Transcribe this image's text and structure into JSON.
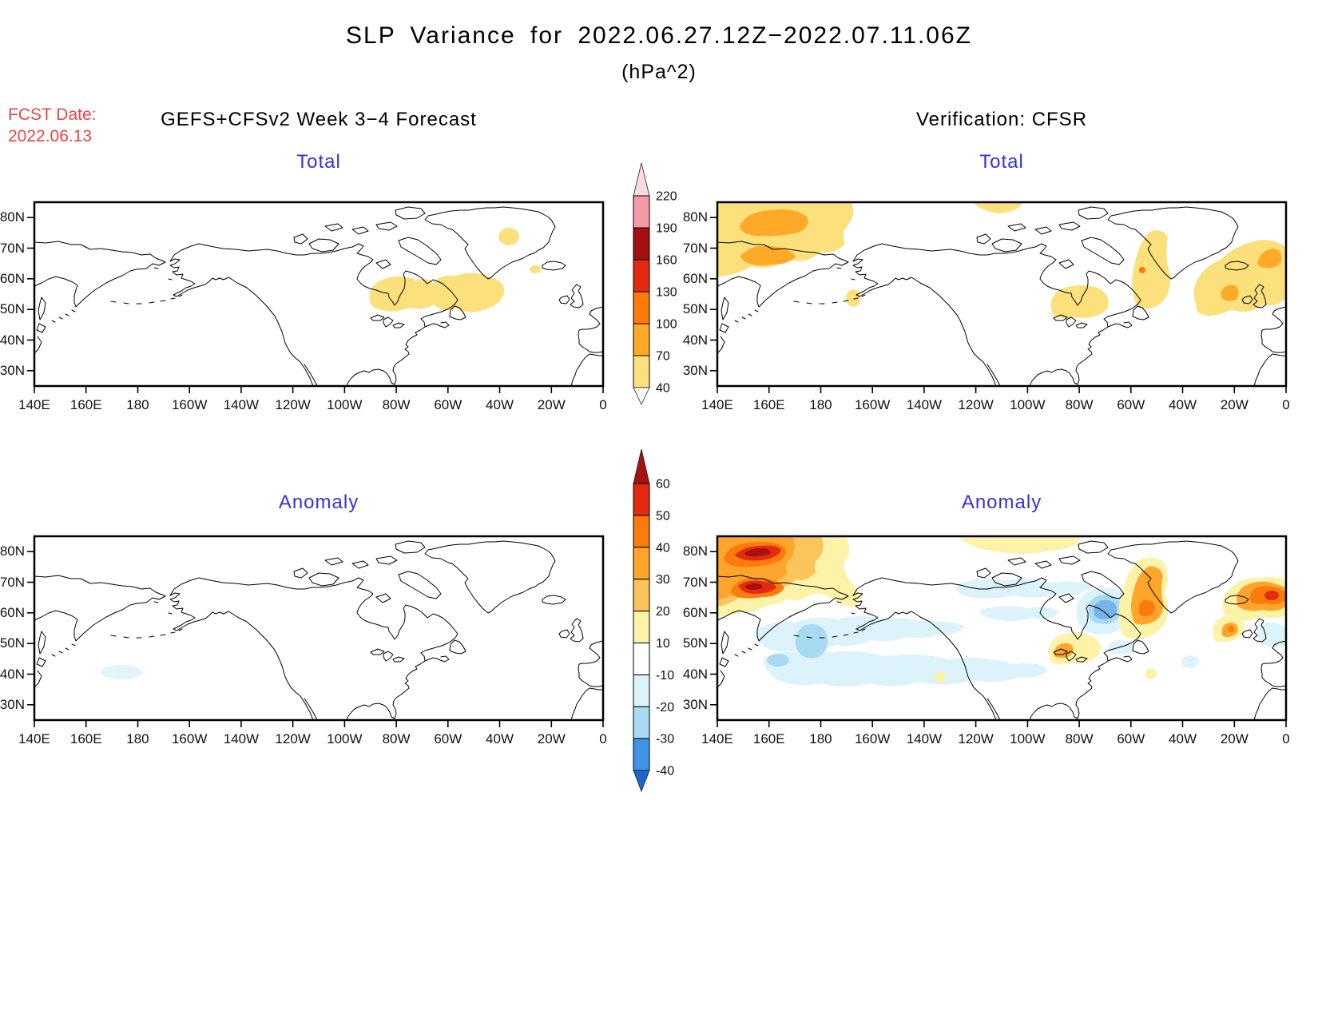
{
  "title": {
    "line1": "SLP Variance for 2022.06.27.12Z−2022.07.11.06Z",
    "line2": "(hPa^2)"
  },
  "forecast_info": {
    "label": "FCST Date:",
    "date": "2022.06.13"
  },
  "column_headers": {
    "left": "GEFS+CFSv2 Week 3−4 Forecast",
    "right": "Verification: CFSR"
  },
  "panel_titles": {
    "top_left": "Total",
    "top_right": "Total",
    "bottom_left": "Anomaly",
    "bottom_right": "Anomaly"
  },
  "axes": {
    "lat": [
      "80N",
      "70N",
      "60N",
      "50N",
      "40N",
      "30N"
    ],
    "lon": [
      "140E",
      "160E",
      "180",
      "160W",
      "140W",
      "120W",
      "100W",
      "80W",
      "60W",
      "40W",
      "20W",
      "0"
    ]
  },
  "colors": {
    "panel_title": "#3333DD",
    "fcst_date": "#F04343",
    "coastline": "#000000",
    "background": "#FFFFFF"
  },
  "colorbars": {
    "total": {
      "labels": [
        "220",
        "190",
        "160",
        "130",
        "100",
        "70",
        "40"
      ],
      "colors": [
        "#FADBE0",
        "#F29BA4",
        "#A50F0F",
        "#E22B10",
        "#FB7A0A",
        "#FFA928",
        "#FBE07C",
        "#FFFFFF"
      ]
    },
    "anomaly": {
      "labels": [
        "60",
        "50",
        "40",
        "30",
        "20",
        "10",
        "-10",
        "-20",
        "-30",
        "-40"
      ],
      "colors": [
        "#A61111",
        "#E22B10",
        "#FB7B0C",
        "#FEA62B",
        "#FBC45C",
        "#FCF3A9",
        "#FFFFFF",
        "#DDF3FB",
        "#A8DAF2",
        "#4193E7",
        "#1B67CE"
      ]
    }
  },
  "chart_data": [
    {
      "type": "heatmap",
      "panel": "forecast_total",
      "title": "Total",
      "source": "GEFS+CFSv2 Week 3-4 Forecast",
      "units": "hPa^2",
      "colorbar": "total",
      "contour_levels": [
        40,
        70,
        100,
        130,
        160,
        190,
        220
      ],
      "lon_domain": [
        "140E",
        "0"
      ],
      "lat_domain": [
        "25N",
        "85N"
      ],
      "shaded_regions": [
        {
          "area": "Eastern Canada: east Hudson Bay through Quebec and Labrador Sea, 50-62N 90W-45W",
          "level": "40-70"
        },
        {
          "area": "Central Greenland, ~71-76N near 45W",
          "level": "40-70"
        },
        {
          "area": "Just south of Iceland, ~63N 23W",
          "level": "40-70"
        }
      ]
    },
    {
      "type": "heatmap",
      "panel": "verification_total",
      "title": "Total",
      "source": "Verification: CFSR",
      "units": "hPa^2",
      "colorbar": "total",
      "contour_levels": [
        40,
        70,
        100,
        130,
        160,
        190,
        220
      ],
      "lon_domain": [
        "140E",
        "0"
      ],
      "lat_domain": [
        "25N",
        "85N"
      ],
      "shaded_regions": [
        {
          "area": "NE Siberia / East Siberian Sea broad maximum, 62-85N 140E-165W",
          "level": "40-70"
        },
        {
          "area": "Core near 78-82N 145E-175E",
          "level": "70-100"
        },
        {
          "area": "Core near 65-71N 145E-170E",
          "level": "70-100"
        },
        {
          "area": "Arctic near 115W along 83N",
          "level": "40-70"
        },
        {
          "area": "Aleutians ~53N 168W",
          "level": "40-70"
        },
        {
          "area": "Quebec / Labrador 48-58N 85W-60W",
          "level": "40-70"
        },
        {
          "area": "Baffin Bay / Davis Strait band 52-75N 60W-50W",
          "level": "40-70"
        },
        {
          "area": "Small spot in Davis Strait ~63N 55W",
          "level": "100-130"
        },
        {
          "area": "NE Atlantic around Iceland 50-72N 35W-0",
          "level": "40-70"
        },
        {
          "area": "Core NE of Iceland ~68N 8W",
          "level": "70-100"
        },
        {
          "area": "Core south of Greenland ~57N 25W",
          "level": "70-100"
        }
      ]
    },
    {
      "type": "heatmap",
      "panel": "forecast_anomaly",
      "title": "Anomaly",
      "source": "GEFS+CFSv2 Week 3-4 Forecast",
      "units": "hPa^2",
      "colorbar": "anomaly",
      "contour_levels": [
        -40,
        -30,
        -20,
        -10,
        10,
        20,
        30,
        40,
        50,
        60
      ],
      "lon_domain": [
        "140E",
        "0"
      ],
      "lat_domain": [
        "25N",
        "85N"
      ],
      "shaded_regions": [
        {
          "area": "Small patch NW Pacific ~42-45N 170E-178W",
          "level": "-20 to -10"
        }
      ]
    },
    {
      "type": "heatmap",
      "panel": "verification_anomaly",
      "title": "Anomaly",
      "source": "Verification: CFSR",
      "units": "hPa^2",
      "colorbar": "anomaly",
      "contour_levels": [
        -40,
        -30,
        -20,
        -10,
        10,
        20,
        30,
        40,
        50,
        60
      ],
      "lon_domain": [
        "140E",
        "0"
      ],
      "lat_domain": [
        "25N",
        "85N"
      ],
      "shaded_regions": [
        {
          "area": "Strong positive NE Siberia 60-85N 140E-175E",
          "level": "10 to >60"
        },
        {
          "area": "Maxima near 80N 160E and 67N 152E",
          "level": ">60"
        },
        {
          "area": "Negative band Bering Sea / N Pacific 38-55N 150E-130W",
          "level": "-10 to -30"
        },
        {
          "area": "Weak negative Beaufort Sea and Canadian Arctic patches",
          "level": "-10 to -20"
        },
        {
          "area": "NE Hudson Bay blob",
          "level": "-20 to -30"
        },
        {
          "area": "Positive Baffin Bay / Davis Strait 55-75N",
          "level": "10 to 50"
        },
        {
          "area": "Positive Great Lakes area",
          "level": "10 to 40"
        },
        {
          "area": "Positive along 85N between 100W-140W",
          "level": "10 to 20"
        },
        {
          "area": "Strong positive NE of Iceland ~68N 12W",
          "level": "30 to 60"
        },
        {
          "area": "Positive south of Greenland ~58N 25W",
          "level": "20 to 50"
        },
        {
          "area": "Weak negative west of UK and near 55N 40W",
          "level": "-10 to -20"
        },
        {
          "area": "Small positive spots near 40N mid-Pacific and mid-Atlantic",
          "level": "10 to 20"
        }
      ]
    }
  ]
}
